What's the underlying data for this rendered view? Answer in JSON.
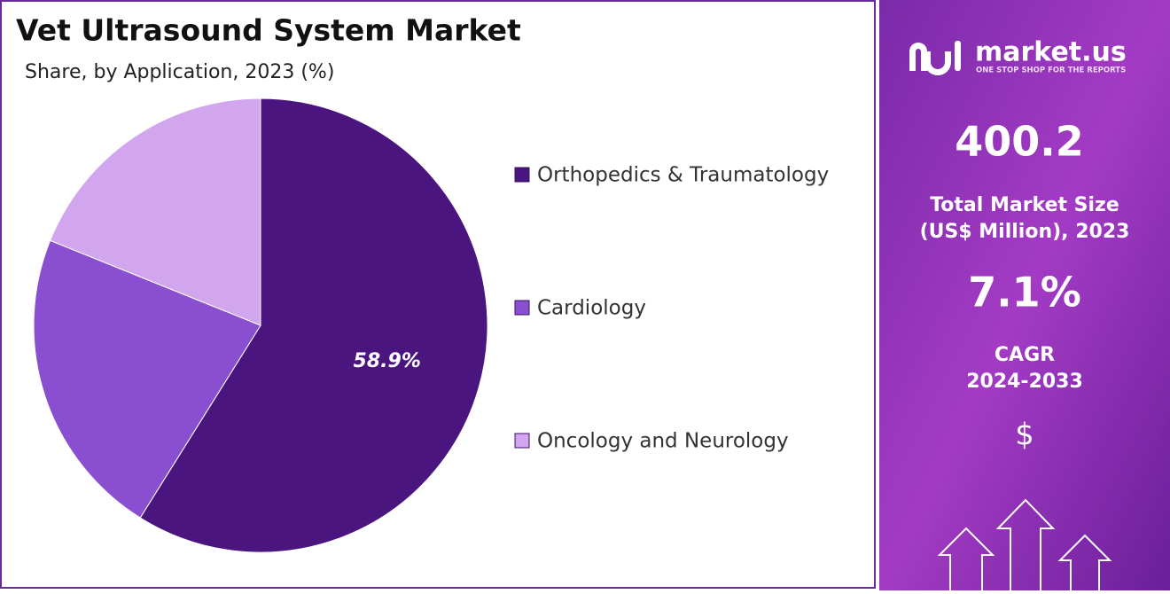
{
  "chart_data": {
    "type": "pie",
    "title": "Vet Ultrasound System Market",
    "subtitle": "Share, by Application, 2023 (%)",
    "categories": [
      "Orthopedics & Traumatology",
      "Cardiology",
      "Oncology and Neurology"
    ],
    "values": [
      58.9,
      22.2,
      18.9
    ],
    "value_labels": [
      "58.9%",
      null,
      null
    ],
    "colors": [
      "#4b1580",
      "#8a4fd0",
      "#d2a6ee"
    ],
    "legend": "right"
  },
  "panel": {
    "brand": "market.us",
    "tagline": "ONE STOP SHOP FOR THE REPORTS",
    "market_size": "400.2",
    "market_size_label_1": "Total Market Size",
    "market_size_label_2": "(US$ Million), 2023",
    "cagr": "7.1%",
    "cagr_label_1": "CAGR",
    "cagr_label_2": "2024-2033",
    "currency_icon": "$"
  }
}
